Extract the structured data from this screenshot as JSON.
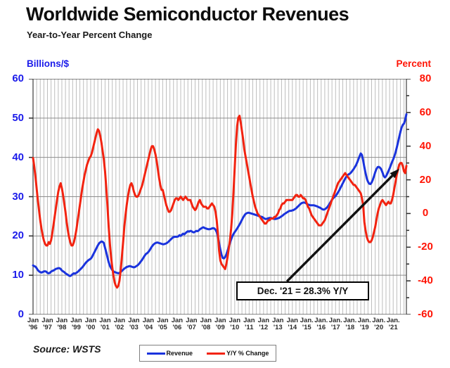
{
  "title": "Worldwide Semiconductor Revenues",
  "subtitle": "Year-to-Year Percent Change",
  "source": "Source: WSTS",
  "left_axis": {
    "label": "Billions/$",
    "color": "#1b1bea",
    "min": 0,
    "max": 60,
    "step": 10
  },
  "right_axis": {
    "label": "Percent",
    "color": "#ff1405",
    "min": -60,
    "max": 80,
    "step": 20
  },
  "annotation": {
    "label": "Dec. '21 = 28.3% Y/Y",
    "value_pct": 28.3
  },
  "legend": [
    {
      "label": "Revenue",
      "color": "#1a33dd"
    },
    {
      "label": "Y/Y % Change",
      "color": "#f22310"
    }
  ],
  "chart_data": {
    "type": "line",
    "freq": "monthly",
    "x_start": "1996-01",
    "x_end": "2021-12",
    "left_ylim": [
      0,
      60
    ],
    "right_ylim": [
      -60,
      80
    ],
    "grid": {
      "vertical_every_months": 3,
      "horizontal_every_left_units": 10
    },
    "legend_position": "bottom-center",
    "x_tick_labels": [
      {
        "line1": "Jan",
        "line2": "'96"
      },
      {
        "line1": "Jan",
        "line2": "'97"
      },
      {
        "line1": "Jan",
        "line2": "'98"
      },
      {
        "line1": "Jan",
        "line2": "'99"
      },
      {
        "line1": "Jan",
        "line2": "'00"
      },
      {
        "line1": "Jan",
        "line2": "'01"
      },
      {
        "line1": "Jan",
        "line2": "'02"
      },
      {
        "line1": "Jan",
        "line2": "'03"
      },
      {
        "line1": "Jan",
        "line2": "'04"
      },
      {
        "line1": "Jan",
        "line2": "'05"
      },
      {
        "line1": "Jan",
        "line2": "'06"
      },
      {
        "line1": "Jan",
        "line2": "'07"
      },
      {
        "line1": "Jan",
        "line2": "'08"
      },
      {
        "line1": "Jan",
        "line2": "'09"
      },
      {
        "line1": "Jan",
        "line2": "'10"
      },
      {
        "line1": "Jan",
        "line2": "'11"
      },
      {
        "line1": "Jan",
        "line2": "'12"
      },
      {
        "line1": "Jan",
        "line2": "'13"
      },
      {
        "line1": "Jan",
        "line2": "'14"
      },
      {
        "line1": "Jan.",
        "line2": "'15"
      },
      {
        "line1": "Jan.",
        "line2": "'16"
      },
      {
        "line1": "Jan.",
        "line2": "'17"
      },
      {
        "line1": "Jan.",
        "line2": "'18"
      },
      {
        "line1": "Jan.",
        "line2": "'19"
      },
      {
        "line1": "Jan.",
        "line2": "'20"
      },
      {
        "line1": "Jan.",
        "line2": "'21"
      }
    ],
    "series": [
      {
        "name": "Revenue",
        "axis": "left",
        "units": "billions USD per month",
        "color": "#1a33dd",
        "values": [
          12.5,
          12.3,
          12.2,
          11.8,
          11.3,
          11.0,
          10.8,
          10.7,
          10.8,
          11.0,
          11.0,
          10.9,
          10.6,
          10.5,
          10.6,
          10.9,
          11.1,
          11.2,
          11.4,
          11.6,
          11.7,
          11.8,
          11.8,
          11.6,
          11.2,
          11.0,
          10.8,
          10.5,
          10.3,
          10.1,
          9.9,
          9.8,
          10.0,
          10.3,
          10.5,
          10.4,
          10.6,
          10.8,
          11.1,
          11.4,
          11.7,
          12.0,
          12.4,
          12.8,
          13.2,
          13.5,
          13.8,
          14.0,
          14.2,
          14.6,
          15.2,
          15.8,
          16.4,
          17.0,
          17.6,
          18.1,
          18.4,
          18.6,
          18.5,
          18.2,
          17.0,
          15.8,
          14.5,
          13.3,
          12.4,
          11.8,
          11.3,
          11.0,
          10.8,
          10.7,
          10.6,
          10.5,
          10.6,
          10.8,
          11.1,
          11.4,
          11.7,
          11.9,
          12.1,
          12.2,
          12.3,
          12.3,
          12.2,
          12.1,
          12.0,
          12.1,
          12.3,
          12.5,
          12.8,
          13.2,
          13.6,
          14.0,
          14.5,
          15.0,
          15.4,
          15.6,
          15.9,
          16.3,
          16.8,
          17.3,
          17.7,
          18.0,
          18.2,
          18.3,
          18.3,
          18.2,
          18.1,
          18.0,
          17.9,
          17.9,
          18.0,
          18.1,
          18.3,
          18.6,
          18.9,
          19.2,
          19.5,
          19.7,
          19.8,
          19.8,
          19.8,
          19.9,
          20.2,
          20.0,
          20.3,
          20.6,
          20.4,
          20.7,
          21.0,
          21.2,
          21.1,
          21.3,
          21.2,
          21.0,
          20.9,
          21.1,
          21.3,
          21.2,
          21.4,
          21.7,
          21.9,
          22.1,
          22.2,
          22.0,
          21.9,
          21.8,
          21.7,
          21.7,
          21.8,
          21.9,
          22.0,
          21.9,
          21.6,
          21.0,
          19.8,
          18.2,
          16.5,
          15.2,
          14.4,
          14.3,
          14.6,
          15.3,
          16.2,
          17.2,
          18.2,
          19.1,
          19.9,
          20.5,
          21.0,
          21.4,
          21.9,
          22.4,
          22.9,
          23.5,
          24.1,
          24.7,
          25.2,
          25.6,
          25.8,
          25.9,
          25.9,
          25.8,
          25.7,
          25.6,
          25.5,
          25.4,
          25.3,
          25.2,
          25.1,
          25.0,
          24.9,
          24.8,
          24.6,
          24.4,
          24.3,
          24.4,
          24.5,
          24.6,
          24.6,
          24.5,
          24.4,
          24.3,
          24.3,
          24.4,
          24.5,
          24.6,
          24.8,
          25.0,
          25.2,
          25.5,
          25.7,
          25.9,
          26.1,
          26.3,
          26.4,
          26.4,
          26.5,
          26.6,
          26.8,
          27.0,
          27.3,
          27.6,
          27.9,
          28.2,
          28.4,
          28.5,
          28.5,
          28.4,
          28.2,
          28.0,
          27.9,
          27.8,
          27.8,
          27.8,
          27.8,
          27.7,
          27.6,
          27.5,
          27.3,
          27.2,
          27.0,
          26.8,
          26.7,
          26.8,
          27.0,
          27.3,
          27.7,
          28.2,
          28.7,
          29.2,
          29.6,
          29.9,
          30.2,
          30.6,
          31.1,
          31.6,
          32.2,
          32.8,
          33.4,
          34.0,
          34.6,
          35.1,
          35.5,
          35.7,
          35.9,
          36.2,
          36.6,
          37.0,
          37.5,
          38.0,
          38.7,
          39.5,
          40.3,
          41.0,
          40.6,
          39.2,
          37.5,
          36.0,
          34.6,
          33.8,
          33.3,
          33.2,
          33.6,
          34.3,
          35.2,
          36.2,
          37.0,
          37.5,
          37.6,
          37.4,
          37.0,
          36.2,
          35.3,
          34.9,
          35.2,
          35.8,
          36.5,
          37.2,
          38.0,
          38.8,
          39.5,
          40.3,
          41.3,
          42.5,
          43.8,
          45.2,
          46.5,
          47.6,
          48.3,
          48.6,
          49.6,
          51.0
        ]
      },
      {
        "name": "Y/Y % Change",
        "axis": "right",
        "units": "percent",
        "color": "#f22310",
        "values": [
          33,
          28,
          22,
          15,
          8,
          2,
          -4,
          -9,
          -13,
          -16,
          -18,
          -19,
          -19,
          -17,
          -18,
          -16,
          -12,
          -7,
          -2,
          3,
          8,
          13,
          16,
          18,
          15,
          11,
          6,
          1,
          -5,
          -10,
          -14,
          -17,
          -19,
          -19,
          -17,
          -14,
          -10,
          -5,
          0,
          5,
          10,
          15,
          19,
          23,
          26,
          29,
          31,
          33,
          34,
          36,
          39,
          42,
          45,
          48,
          50,
          49,
          46,
          42,
          37,
          32,
          25,
          15,
          4,
          -8,
          -18,
          -26,
          -32,
          -37,
          -41,
          -43,
          -44,
          -43,
          -40,
          -34,
          -26,
          -17,
          -8,
          -1,
          5,
          10,
          14,
          17,
          18,
          16,
          13,
          11,
          10,
          10,
          11,
          13,
          15,
          17,
          20,
          23,
          26,
          29,
          32,
          35,
          38,
          40,
          40,
          38,
          35,
          31,
          26,
          21,
          17,
          14,
          14,
          11,
          8,
          5,
          3,
          1,
          1,
          2,
          4,
          6,
          8,
          9,
          9,
          8,
          9,
          10,
          9,
          8,
          9,
          10,
          9,
          8,
          8,
          8,
          6,
          4,
          3,
          2,
          3,
          5,
          7,
          8,
          6,
          5,
          4,
          4,
          4,
          3,
          3,
          4,
          5,
          6,
          5,
          4,
          1,
          -4,
          -12,
          -22,
          -28,
          -30,
          -31,
          -32,
          -33,
          -30,
          -26,
          -21,
          -16,
          -9,
          0,
          13,
          27,
          41,
          52,
          57,
          58,
          54,
          49,
          44,
          38,
          34,
          30,
          26,
          22,
          18,
          14,
          10,
          7,
          4,
          2,
          0,
          -1,
          -2,
          -3,
          -4,
          -5,
          -6,
          -6,
          -5,
          -4,
          -4,
          -3,
          -3,
          -3,
          -2,
          -2,
          -1,
          0,
          2,
          3,
          5,
          6,
          6,
          7,
          8,
          8,
          8,
          8,
          8,
          8,
          9,
          10,
          11,
          11,
          10,
          10,
          11,
          10,
          9,
          9,
          8,
          6,
          4,
          3,
          1,
          -1,
          -2,
          -3,
          -4,
          -5,
          -6,
          -7,
          -7,
          -7,
          -6,
          -5,
          -4,
          -2,
          0,
          2,
          4,
          6,
          8,
          10,
          12,
          14,
          16,
          18,
          19,
          20,
          21,
          22,
          23,
          24,
          23,
          22,
          21,
          20,
          19,
          18,
          17,
          17,
          16,
          15,
          14,
          13,
          12,
          9,
          5,
          -5,
          -10,
          -14,
          -16,
          -17,
          -17,
          -16,
          -14,
          -11,
          -8,
          -4,
          0,
          3,
          5,
          7,
          8,
          7,
          6,
          5,
          6,
          7,
          6,
          6,
          8,
          11,
          15,
          19,
          23,
          26,
          29,
          30,
          30,
          28,
          25,
          24,
          28.3
        ]
      }
    ]
  }
}
